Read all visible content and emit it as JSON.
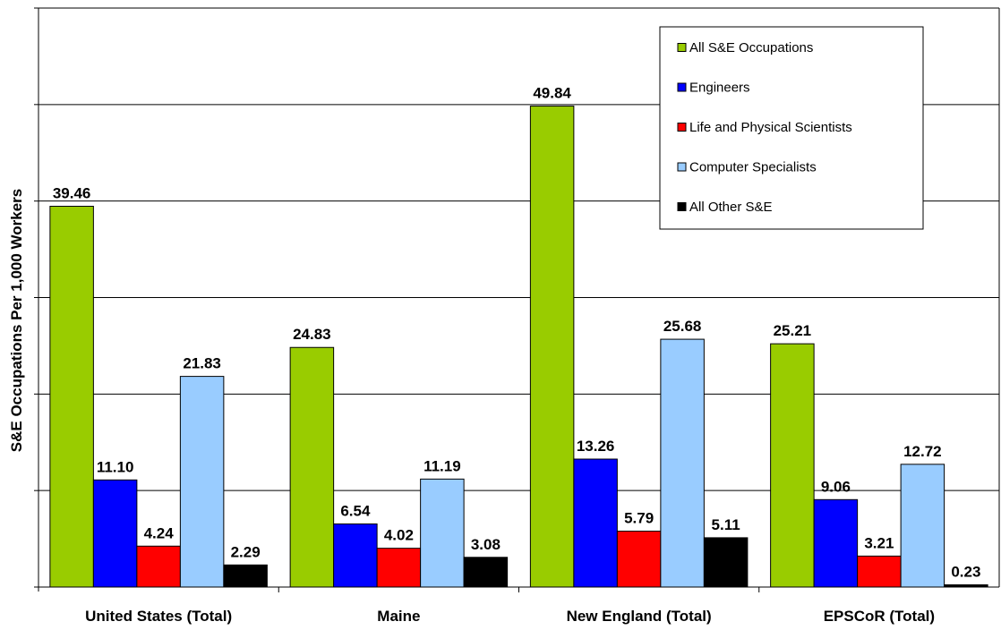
{
  "chart_data": {
    "type": "bar",
    "ylabel": "S&E Occupations Per 1,000 Workers",
    "ylim": [
      0,
      60
    ],
    "y_gridline_step": 10,
    "grid": true,
    "legend_position": "top-right",
    "categories": [
      "United States (Total)",
      "Maine",
      "New England (Total)",
      "EPSCoR (Total)"
    ],
    "series": [
      {
        "name": "All S&E Occupations",
        "color": "#99cc00",
        "values": [
          39.46,
          24.83,
          49.84,
          25.21
        ],
        "labels": [
          "39.46",
          "24.83",
          "49.84",
          "25.21"
        ]
      },
      {
        "name": "Engineers",
        "color": "#0000ff",
        "values": [
          11.1,
          6.54,
          13.26,
          9.06
        ],
        "labels": [
          "11.10",
          "6.54",
          "13.26",
          "9.06"
        ]
      },
      {
        "name": "Life and Physical Scientists",
        "color": "#ff0000",
        "values": [
          4.24,
          4.02,
          5.79,
          3.21
        ],
        "labels": [
          "4.24",
          "4.02",
          "5.79",
          "3.21"
        ]
      },
      {
        "name": "Computer Specialists",
        "color": "#99ccff",
        "values": [
          21.83,
          11.19,
          25.68,
          12.72
        ],
        "labels": [
          "21.83",
          "11.19",
          "25.68",
          "12.72"
        ]
      },
      {
        "name": "All Other S&E",
        "color": "#000000",
        "values": [
          2.29,
          3.08,
          5.11,
          0.23
        ],
        "labels": [
          "2.29",
          "3.08",
          "5.11",
          "0.23"
        ]
      }
    ]
  }
}
